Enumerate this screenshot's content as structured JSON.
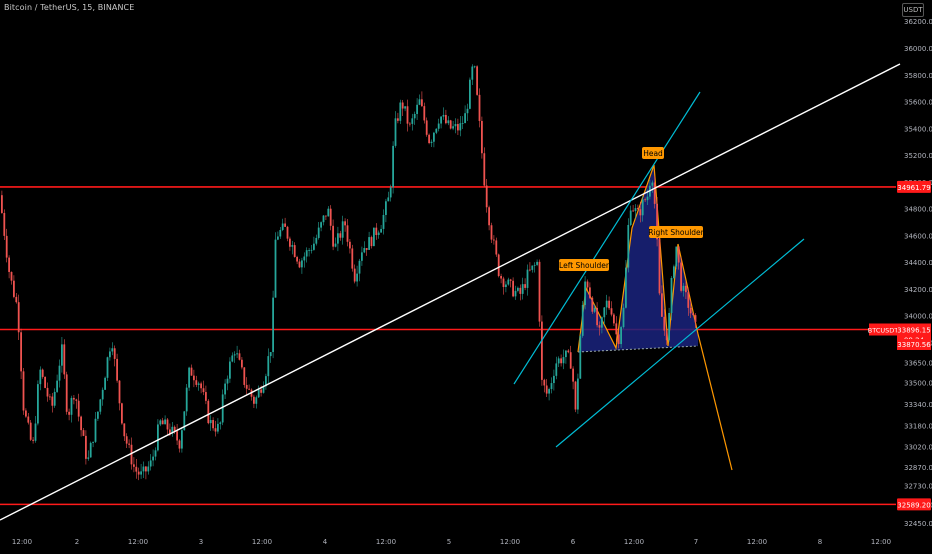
{
  "header": {
    "title": "Bitcoin / TetherUS, 15, BINANCE",
    "currency": "USDT"
  },
  "colors": {
    "background": "#000000",
    "up_candle": "#26a69a",
    "down_candle": "#ef5350",
    "up_candle_dark": "#1b5e20",
    "horizontal_level": "#ff1a1a",
    "trendline": "#ffffff",
    "channel": "#00bcd4",
    "pattern_line": "#ff9800",
    "pattern_fill": "#1a237e",
    "axis_text": "#b2b5be"
  },
  "chart_data": {
    "type": "candlestick",
    "symbol": "BTCUSDT",
    "timeframe": "15",
    "exchange": "BINANCE",
    "y_axis": {
      "labels": [
        36200,
        36000,
        35800,
        35600,
        35400,
        35200,
        35000,
        34800,
        34600,
        34400,
        34200,
        34000,
        33800,
        33650,
        33500,
        33340,
        33180,
        33020,
        32870,
        32730,
        32590,
        32450
      ],
      "ylim": [
        32400,
        36300
      ]
    },
    "x_axis": {
      "labels": [
        "12:00",
        "2",
        "12:00",
        "3",
        "12:00",
        "4",
        "12:00",
        "5",
        "12:00",
        "6",
        "12:00",
        "7",
        "12:00",
        "8",
        "12:00"
      ]
    },
    "horizontal_levels": [
      {
        "price": 34961.79,
        "label": "34961.79"
      },
      {
        "price": 33896.15,
        "label": null
      },
      {
        "price": 32589.2,
        "label": "32589.20"
      }
    ],
    "current_price": {
      "symbol": "BTCUSDT",
      "price": "33896.15",
      "countdown": "08:24"
    },
    "extra_price_label": "33870.56",
    "pattern": {
      "name": "head-and-shoulders",
      "labels": {
        "head": "Head",
        "left_shoulder": "Left Shoulder",
        "right_shoulder": "Right Shoulder"
      }
    }
  }
}
